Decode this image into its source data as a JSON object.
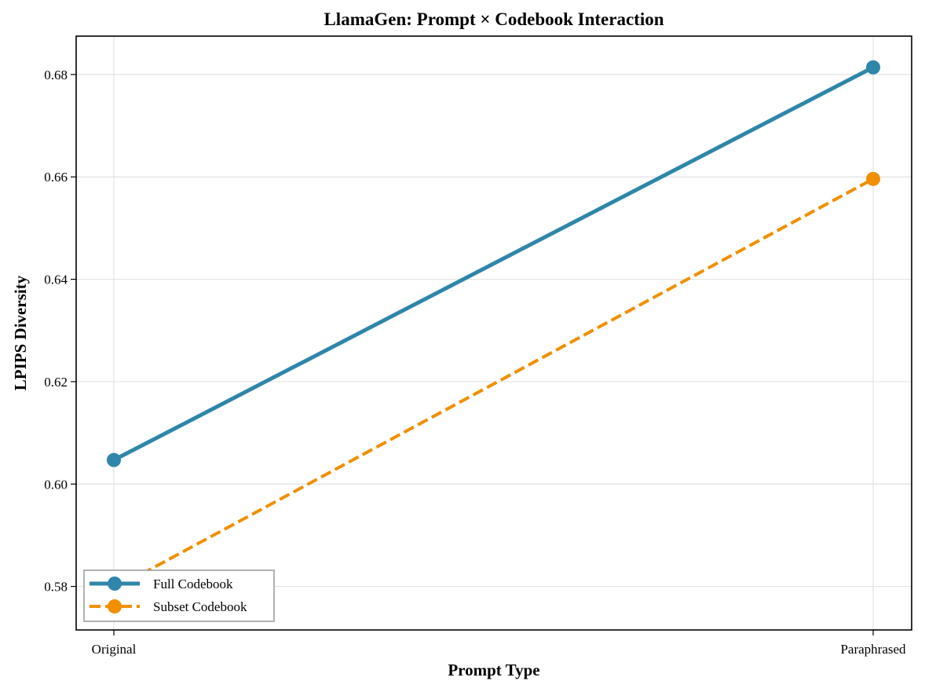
{
  "chart_data": {
    "type": "line",
    "title": "LlamaGen: Prompt × Codebook Interaction",
    "xlabel": "Prompt Type",
    "ylabel": "LPIPS Diversity",
    "categories": [
      "Original",
      "Paraphrased"
    ],
    "ylim": [
      0.5715,
      0.6875
    ],
    "yticks": [
      "0.58",
      "0.60",
      "0.62",
      "0.64",
      "0.66",
      "0.68"
    ],
    "grid": true,
    "legend_position": "lower-left",
    "series": [
      {
        "name": "Full Codebook",
        "values": [
          0.6047,
          0.6814
        ],
        "color": "#2e86ab",
        "dash": "solid"
      },
      {
        "name": "Subset Codebook",
        "values": [
          0.5795,
          0.6596
        ],
        "color": "#f18f01",
        "dash": "dashed"
      }
    ]
  }
}
